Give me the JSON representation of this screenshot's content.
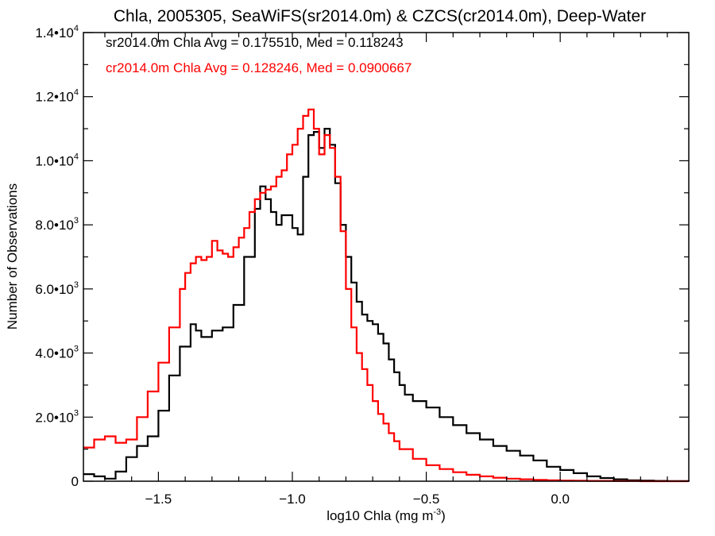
{
  "chart_data": {
    "type": "line",
    "title": "Chla, 2005305, SeaWiFS(sr2014.0m) & CZCS(cr2014.0m), Deep-Water",
    "xlabel": "log10 Chla (mg m",
    "xlabel_exponent": "-3",
    "xlabel_suffix": ")",
    "ylabel": "Number of Observations",
    "xlim": [
      -1.78,
      0.48
    ],
    "ylim": [
      0,
      14000
    ],
    "x_ticks": [
      {
        "value": -1.5,
        "label": "−1.5"
      },
      {
        "value": -1.0,
        "label": "−1.0"
      },
      {
        "value": -0.5,
        "label": "−0.5"
      },
      {
        "value": 0.0,
        "label": "0.0"
      }
    ],
    "y_ticks": [
      {
        "value": 0,
        "mantissa": "0",
        "exponent": ""
      },
      {
        "value": 2000,
        "mantissa": "2.0•10",
        "exponent": "3"
      },
      {
        "value": 4000,
        "mantissa": "4.0•10",
        "exponent": "3"
      },
      {
        "value": 6000,
        "mantissa": "6.0•10",
        "exponent": "3"
      },
      {
        "value": 8000,
        "mantissa": "8.0•10",
        "exponent": "3"
      },
      {
        "value": 10000,
        "mantissa": "1.0•10",
        "exponent": "4"
      },
      {
        "value": 12000,
        "mantissa": "1.2•10",
        "exponent": "4"
      },
      {
        "value": 14000,
        "mantissa": "1.4•10",
        "exponent": "4"
      }
    ],
    "annotations": [
      {
        "text": "sr2014.0m Chla Avg = 0.175510, Med = 0.118243",
        "color": "#000000"
      },
      {
        "text": "cr2014.0m Chla Avg = 0.128246, Med = 0.0900667",
        "color": "#ff0000"
      }
    ],
    "series": [
      {
        "color": "#000000",
        "x": [
          -1.78,
          -1.74,
          -1.7,
          -1.66,
          -1.62,
          -1.58,
          -1.54,
          -1.5,
          -1.46,
          -1.42,
          -1.38,
          -1.36,
          -1.34,
          -1.3,
          -1.26,
          -1.22,
          -1.18,
          -1.14,
          -1.12,
          -1.1,
          -1.08,
          -1.06,
          -1.04,
          -1.0,
          -0.98,
          -0.96,
          -0.94,
          -0.92,
          -0.9,
          -0.88,
          -0.86,
          -0.84,
          -0.82,
          -0.8,
          -0.78,
          -0.76,
          -0.74,
          -0.72,
          -0.7,
          -0.68,
          -0.66,
          -0.64,
          -0.62,
          -0.6,
          -0.58,
          -0.55,
          -0.5,
          -0.45,
          -0.4,
          -0.35,
          -0.3,
          -0.25,
          -0.2,
          -0.15,
          -0.1,
          -0.05,
          0.0,
          0.05,
          0.1,
          0.15,
          0.2,
          0.25,
          0.3,
          0.35,
          0.4,
          0.48
        ],
        "y": [
          220,
          150,
          80,
          300,
          750,
          1100,
          1400,
          2200,
          3300,
          4200,
          4900,
          4700,
          4500,
          4700,
          4800,
          5500,
          7000,
          8500,
          9200,
          8800,
          8400,
          8000,
          8300,
          7900,
          7700,
          9500,
          10800,
          10900,
          10400,
          11000,
          10500,
          9300,
          8000,
          7000,
          6200,
          5600,
          5200,
          5000,
          4900,
          4600,
          4300,
          3800,
          3400,
          3000,
          2700,
          2500,
          2300,
          2000,
          1750,
          1500,
          1300,
          1100,
          950,
          800,
          650,
          450,
          350,
          250,
          150,
          100,
          60,
          30,
          20,
          10,
          5,
          0
        ]
      },
      {
        "color": "#ff0000",
        "x": [
          -1.78,
          -1.74,
          -1.7,
          -1.66,
          -1.62,
          -1.58,
          -1.54,
          -1.5,
          -1.46,
          -1.42,
          -1.4,
          -1.38,
          -1.36,
          -1.34,
          -1.32,
          -1.3,
          -1.28,
          -1.26,
          -1.24,
          -1.22,
          -1.2,
          -1.18,
          -1.16,
          -1.14,
          -1.12,
          -1.1,
          -1.08,
          -1.06,
          -1.04,
          -1.02,
          -1.0,
          -0.98,
          -0.96,
          -0.94,
          -0.92,
          -0.9,
          -0.88,
          -0.86,
          -0.84,
          -0.82,
          -0.8,
          -0.78,
          -0.76,
          -0.74,
          -0.72,
          -0.7,
          -0.68,
          -0.66,
          -0.64,
          -0.62,
          -0.6,
          -0.55,
          -0.5,
          -0.45,
          -0.4,
          -0.35,
          -0.3,
          -0.25,
          -0.2,
          -0.15,
          -0.1,
          -0.05,
          0.0,
          0.05,
          0.1,
          0.15,
          0.2,
          0.25,
          0.3,
          0.35,
          0.4,
          0.48
        ],
        "y": [
          1050,
          1300,
          1400,
          1200,
          1300,
          2000,
          2800,
          3700,
          4800,
          6000,
          6500,
          6800,
          7000,
          6900,
          7000,
          7500,
          7200,
          7100,
          7000,
          7300,
          7600,
          7900,
          8400,
          8800,
          9000,
          9100,
          9200,
          9500,
          9700,
          10200,
          10500,
          11000,
          11400,
          11600,
          11000,
          10200,
          10800,
          10400,
          9500,
          7800,
          6000,
          4800,
          4000,
          3500,
          3000,
          2500,
          2100,
          1800,
          1500,
          1250,
          1000,
          700,
          500,
          380,
          280,
          200,
          150,
          110,
          80,
          60,
          40,
          30,
          20,
          15,
          10,
          10,
          5,
          5,
          0,
          0,
          0,
          0
        ]
      }
    ]
  }
}
